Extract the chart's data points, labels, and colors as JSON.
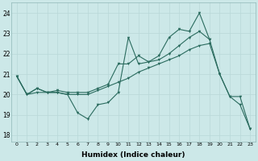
{
  "xlabel": "Humidex (Indice chaleur)",
  "bg_color": "#cce8e8",
  "line_color": "#2a6b5e",
  "xlim": [
    -0.5,
    23.5
  ],
  "ylim": [
    17.7,
    24.5
  ],
  "yticks": [
    18,
    19,
    20,
    21,
    22,
    23,
    24
  ],
  "xticks": [
    0,
    1,
    2,
    3,
    4,
    5,
    6,
    7,
    8,
    9,
    10,
    11,
    12,
    13,
    14,
    15,
    16,
    17,
    18,
    19,
    20,
    21,
    22,
    23
  ],
  "series1_x": [
    0,
    1,
    2,
    3,
    4,
    5,
    6,
    7,
    8,
    9,
    10,
    11,
    12,
    13,
    14,
    15,
    16,
    17,
    18,
    19,
    20,
    21,
    22,
    23
  ],
  "series1_y": [
    20.9,
    20.0,
    20.3,
    20.1,
    20.1,
    20.0,
    19.1,
    18.8,
    19.5,
    19.6,
    20.1,
    22.8,
    21.5,
    21.6,
    21.9,
    22.8,
    23.2,
    23.1,
    24.0,
    22.7,
    21.0,
    19.9,
    19.9,
    18.3
  ],
  "series2_x": [
    0,
    1,
    2,
    3,
    4,
    5,
    6,
    7,
    8,
    9,
    10,
    11,
    12,
    13,
    14,
    15,
    16,
    17,
    18,
    19
  ],
  "series2_y": [
    20.9,
    20.0,
    20.3,
    20.1,
    20.2,
    20.1,
    20.1,
    20.1,
    20.3,
    20.5,
    21.5,
    21.5,
    21.9,
    21.6,
    21.7,
    22.0,
    22.4,
    22.8,
    23.1,
    22.7
  ],
  "series3_x": [
    0,
    1,
    2,
    3,
    4,
    5,
    6,
    7,
    8,
    9,
    10,
    11,
    12,
    13,
    14,
    15,
    16,
    17,
    18,
    19,
    20,
    21,
    22,
    23
  ],
  "series3_y": [
    20.9,
    20.0,
    20.1,
    20.1,
    20.1,
    20.0,
    20.0,
    20.0,
    20.2,
    20.4,
    20.6,
    20.8,
    21.1,
    21.3,
    21.5,
    21.7,
    21.9,
    22.2,
    22.4,
    22.5,
    21.0,
    19.9,
    19.5,
    18.3
  ]
}
